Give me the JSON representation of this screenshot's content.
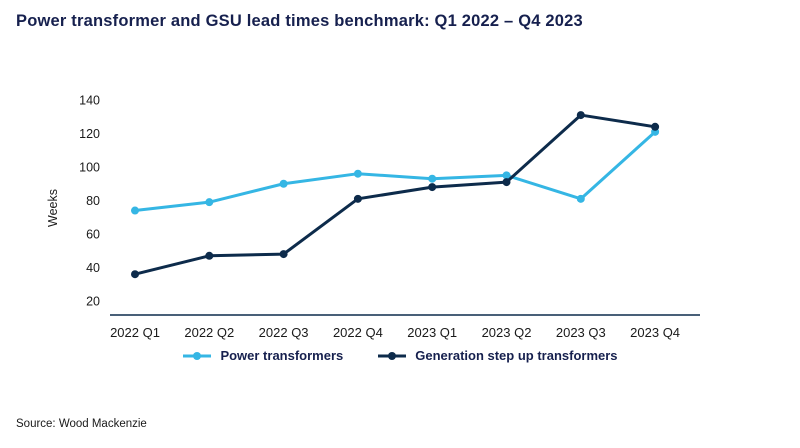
{
  "title": "Power transformer and GSU lead times benchmark: Q1 2022 – Q4 2023",
  "source": "Source: Wood Mackenzie",
  "colors": {
    "title_text": "#16204e",
    "axis_line": "#0d2b4b",
    "tick_text": "#1a1a1a",
    "power_series": "#35b6e4",
    "gsu_series": "#0d2b4b"
  },
  "chart_data": {
    "type": "line",
    "title": "Power transformer and GSU lead times benchmark: Q1 2022 – Q4 2023",
    "xlabel": "",
    "ylabel": "Weeks",
    "categories": [
      "2022 Q1",
      "2022 Q2",
      "2022 Q3",
      "2022 Q4",
      "2023 Q1",
      "2023 Q2",
      "2023 Q3",
      "2023 Q4"
    ],
    "series": [
      {
        "name": "Power transformers",
        "color": "#35b6e4",
        "values": [
          74,
          79,
          90,
          96,
          93,
          95,
          81,
          121
        ]
      },
      {
        "name": "Generation step up transformers",
        "color": "#0d2b4b",
        "values": [
          36,
          47,
          48,
          81,
          88,
          91,
          131,
          124
        ]
      }
    ],
    "yticks": [
      20,
      40,
      60,
      80,
      100,
      120,
      140
    ],
    "ylim": [
      20,
      140
    ],
    "grid": false,
    "legend_position": "bottom"
  }
}
